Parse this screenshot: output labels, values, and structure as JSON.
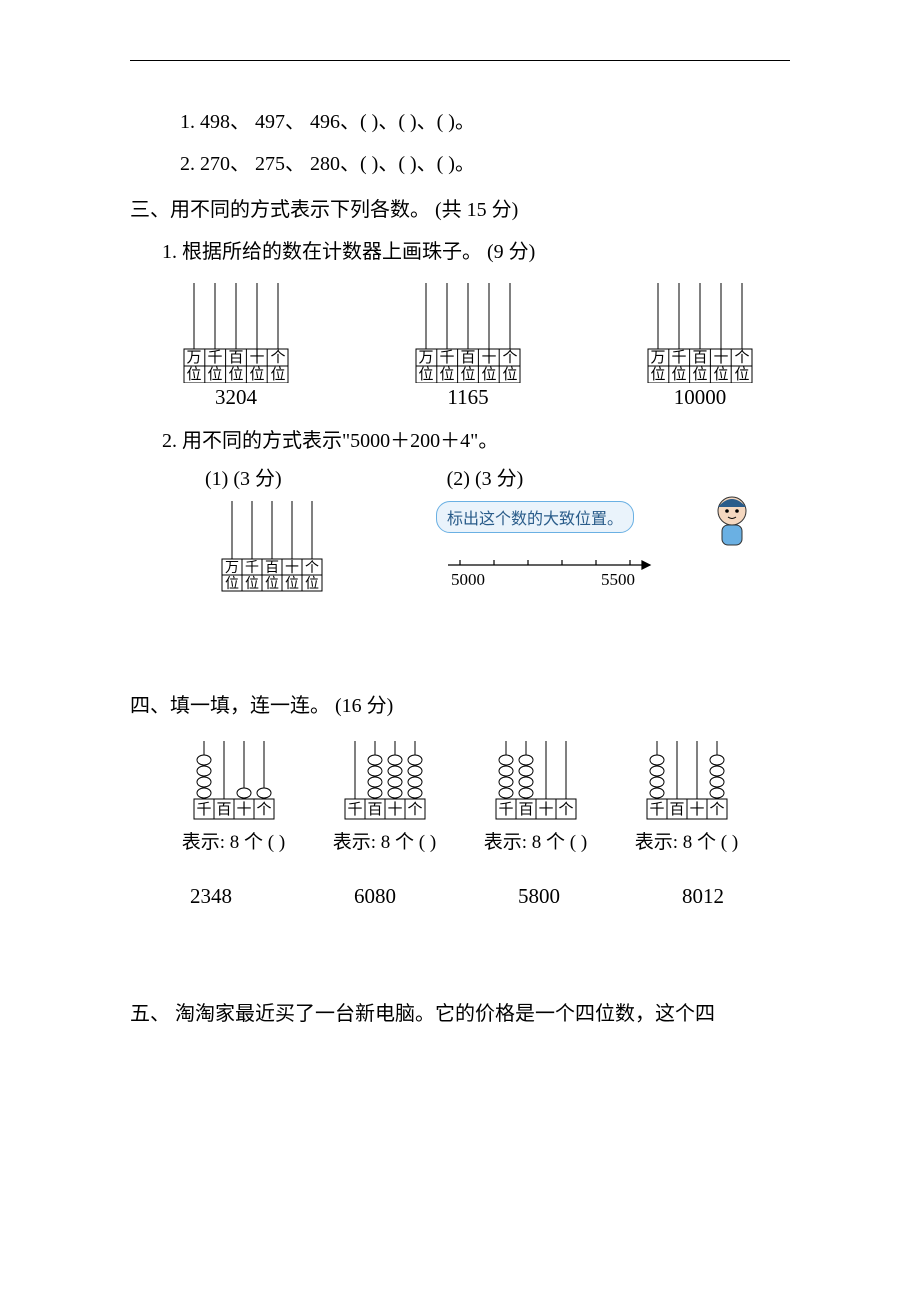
{
  "q_seq": {
    "s1": {
      "text": "1. 498、  497、  496、(       )、(       )、(       )。"
    },
    "s2": {
      "text": "2. 270、  275、  280、(       )、(       )、(       )。"
    }
  },
  "sec3": {
    "title": "三、用不同的方式表示下列各数。  (共  15  分)",
    "p1": {
      "title": "1.  根据所给的数在计数器上画珠子。  (9  分)",
      "abacus_labels": [
        "万",
        "千",
        "百",
        "十",
        "个"
      ],
      "abacus_sub": [
        "位",
        "位",
        "位",
        "位",
        "位"
      ],
      "nums": [
        "3204",
        "1165",
        "10000"
      ]
    },
    "p2": {
      "title": "2.  用不同的方式表示\"5000＋200＋4\"。",
      "a_label": "(1) (3  分)",
      "b_label": "(2) (3  分)",
      "callout": "标出这个数的大致位置。",
      "numline": {
        "start": "5000",
        "end": "5500"
      }
    }
  },
  "sec4": {
    "title": "四、填一填，连一连。  (16  分)",
    "cols_labels": [
      "千",
      "百",
      "十",
      "个"
    ],
    "items": [
      {
        "beads": [
          4,
          0,
          1,
          1
        ],
        "label": "表示: 8 个 (       )"
      },
      {
        "beads": [
          0,
          4,
          4,
          4
        ],
        "label": "表示: 8 个 (       )"
      },
      {
        "beads": [
          4,
          4,
          0,
          0
        ],
        "label": "表示: 8 个 (       )"
      },
      {
        "beads": [
          4,
          0,
          0,
          4
        ],
        "label": "表示: 8 个 (       )"
      }
    ],
    "nums": [
      "2348",
      "6080",
      "5800",
      "8012"
    ]
  },
  "sec5": {
    "title": "五、  淘淘家最近买了一台新电脑。它的价格是一个四位数，这个四"
  },
  "style": {
    "line_color": "#000",
    "callout_border": "#6ab0e3",
    "callout_bg": "#eaf3fb",
    "callout_text": "#2a5c8a"
  }
}
